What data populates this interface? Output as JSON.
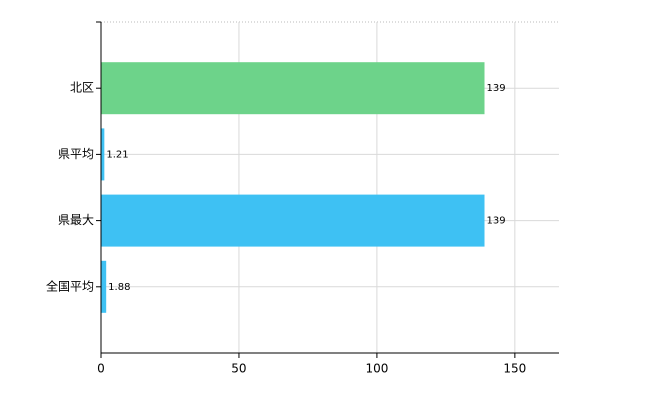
{
  "chart_data": {
    "type": "hbar",
    "categories": [
      "北区",
      "県平均",
      "県最大",
      "全国平均"
    ],
    "values": [
      139,
      1.21,
      139,
      1.88
    ],
    "colors": [
      "#6dd38a",
      "#3ec1f3",
      "#3ec1f3",
      "#3ec1f3"
    ],
    "xlim": [
      0,
      166
    ],
    "xticks": [
      0,
      50,
      100,
      150
    ],
    "grid": true
  }
}
